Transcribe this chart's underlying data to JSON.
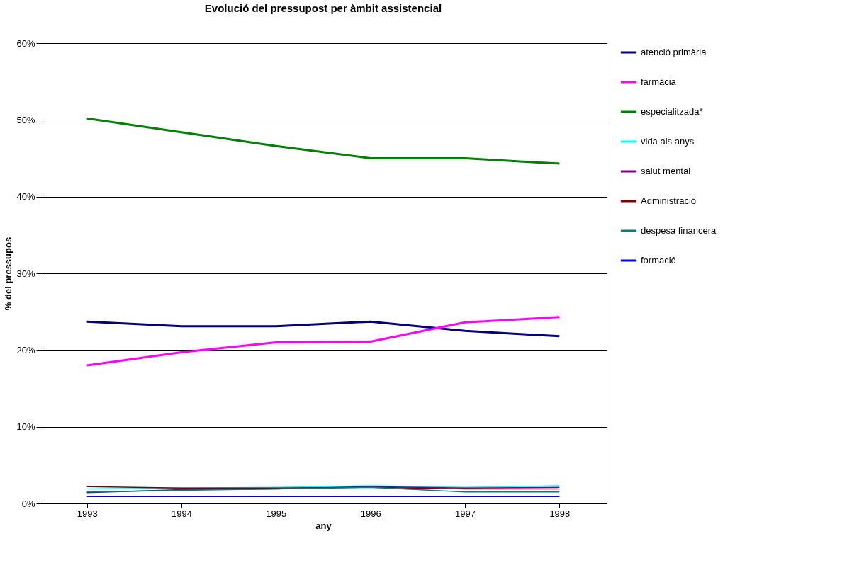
{
  "chart_data": {
    "type": "line",
    "title": "Evolució del pressupost  per àmbit assistencial",
    "xlabel": "any",
    "ylabel": "% del pressupos",
    "categories": [
      "1993",
      "1994",
      "1995",
      "1996",
      "1997",
      "1998"
    ],
    "series": [
      {
        "name": "atenció primària",
        "color": "#000080",
        "values": [
          23.7,
          23.1,
          23.1,
          23.7,
          22.5,
          21.8
        ]
      },
      {
        "name": "farmàcia",
        "color": "#ff00ff",
        "values": [
          18.0,
          19.7,
          21.0,
          21.1,
          23.6,
          24.3
        ]
      },
      {
        "name": "especialitzada*",
        "color": "#008000",
        "values": [
          50.2,
          48.4,
          46.6,
          45.0,
          45.0,
          44.3
        ]
      },
      {
        "name": "vida als anys",
        "color": "#00ffff",
        "values": [
          1.9,
          2.0,
          2.1,
          2.3,
          2.1,
          2.3
        ]
      },
      {
        "name": "salut mental",
        "color": "#800080",
        "values": [
          1.4,
          1.8,
          1.9,
          2.2,
          2.0,
          2.1
        ]
      },
      {
        "name": "Administració",
        "color": "#800000",
        "values": [
          2.2,
          2.0,
          2.0,
          2.1,
          1.9,
          1.9
        ]
      },
      {
        "name": "despesa financera",
        "color": "#008080",
        "values": [
          1.5,
          1.7,
          1.9,
          2.1,
          1.5,
          1.5
        ]
      },
      {
        "name": "formació",
        "color": "#0000ff",
        "values": [
          0.9,
          0.9,
          0.9,
          0.9,
          0.9,
          0.9
        ]
      }
    ],
    "ylim": [
      0,
      60
    ],
    "yticks": [
      {
        "value": 0,
        "label": "0%"
      },
      {
        "value": 10,
        "label": "10%"
      },
      {
        "value": 20,
        "label": "20%"
      },
      {
        "value": 30,
        "label": "30%"
      },
      {
        "value": 40,
        "label": "40%"
      },
      {
        "value": 50,
        "label": "50%"
      },
      {
        "value": 60,
        "label": "60%"
      }
    ],
    "grid": "y",
    "legend": "right",
    "marker": "none",
    "line_style": "solid"
  }
}
